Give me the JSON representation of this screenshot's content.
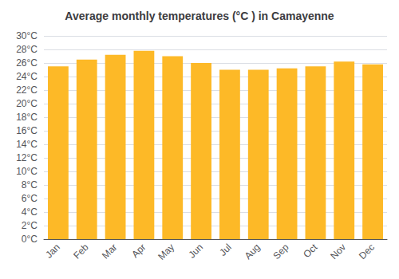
{
  "chart_data": {
    "type": "bar",
    "title": "Average monthly temperatures (°C ) in Camayenne",
    "categories": [
      "Jan",
      "Feb",
      "Mar",
      "Apr",
      "May",
      "Jun",
      "Jul",
      "Aug",
      "Sep",
      "Oct",
      "Nov",
      "Dec"
    ],
    "values": [
      25.5,
      26.5,
      27.2,
      27.8,
      27.0,
      26.0,
      25.0,
      25.0,
      25.2,
      25.5,
      26.2,
      25.8
    ],
    "color": "#FDB927",
    "ylim": [
      0,
      30
    ],
    "yticks": [
      {
        "value": 0,
        "label": "0°C"
      },
      {
        "value": 2,
        "label": "2°C"
      },
      {
        "value": 4,
        "label": "4°C"
      },
      {
        "value": 6,
        "label": "6°C"
      },
      {
        "value": 8,
        "label": "8°C"
      },
      {
        "value": 10,
        "label": "10°C"
      },
      {
        "value": 12,
        "label": "12°C"
      },
      {
        "value": 14,
        "label": "14°C"
      },
      {
        "value": 16,
        "label": "16°C"
      },
      {
        "value": 18,
        "label": "18°C"
      },
      {
        "value": 20,
        "label": "20°C"
      },
      {
        "value": 22,
        "label": "22°C"
      },
      {
        "value": 24,
        "label": "24°C"
      },
      {
        "value": 26,
        "label": "26°C"
      },
      {
        "value": 28,
        "label": "28°C"
      },
      {
        "value": 30,
        "label": "30°C"
      }
    ],
    "grid": true
  }
}
